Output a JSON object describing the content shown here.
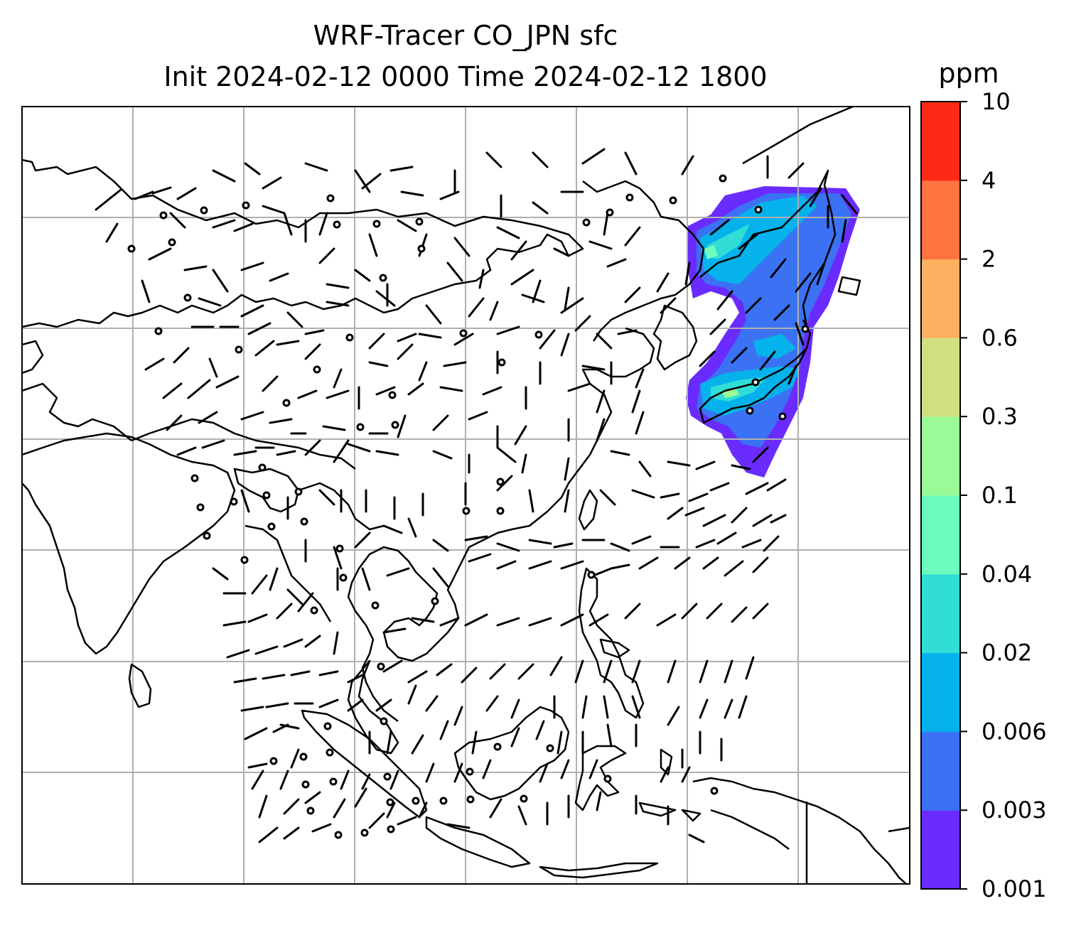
{
  "title_line1": "WRF-Tracer CO_JPN sfc",
  "title_line2": "Init 2024-02-12 0000 Time 2024-02-12 1800",
  "colorbar": {
    "unit": "ppm",
    "levels": [
      "0.001",
      "0.003",
      "0.006",
      "0.02",
      "0.04",
      "0.1",
      "0.3",
      "0.6",
      "2",
      "4",
      "10"
    ],
    "colors": [
      "#6a2bff",
      "#3a72f3",
      "#06b2ec",
      "#30ded6",
      "#6cfcbd",
      "#9afa98",
      "#cfe082",
      "#fdb160",
      "#ff7340",
      "#ff2a15"
    ]
  },
  "map": {
    "features": [
      "coastlines",
      "country-borders",
      "graticule",
      "wind-barbs",
      "co-tracer-plume"
    ],
    "plume_region": "Japan / Korea"
  }
}
